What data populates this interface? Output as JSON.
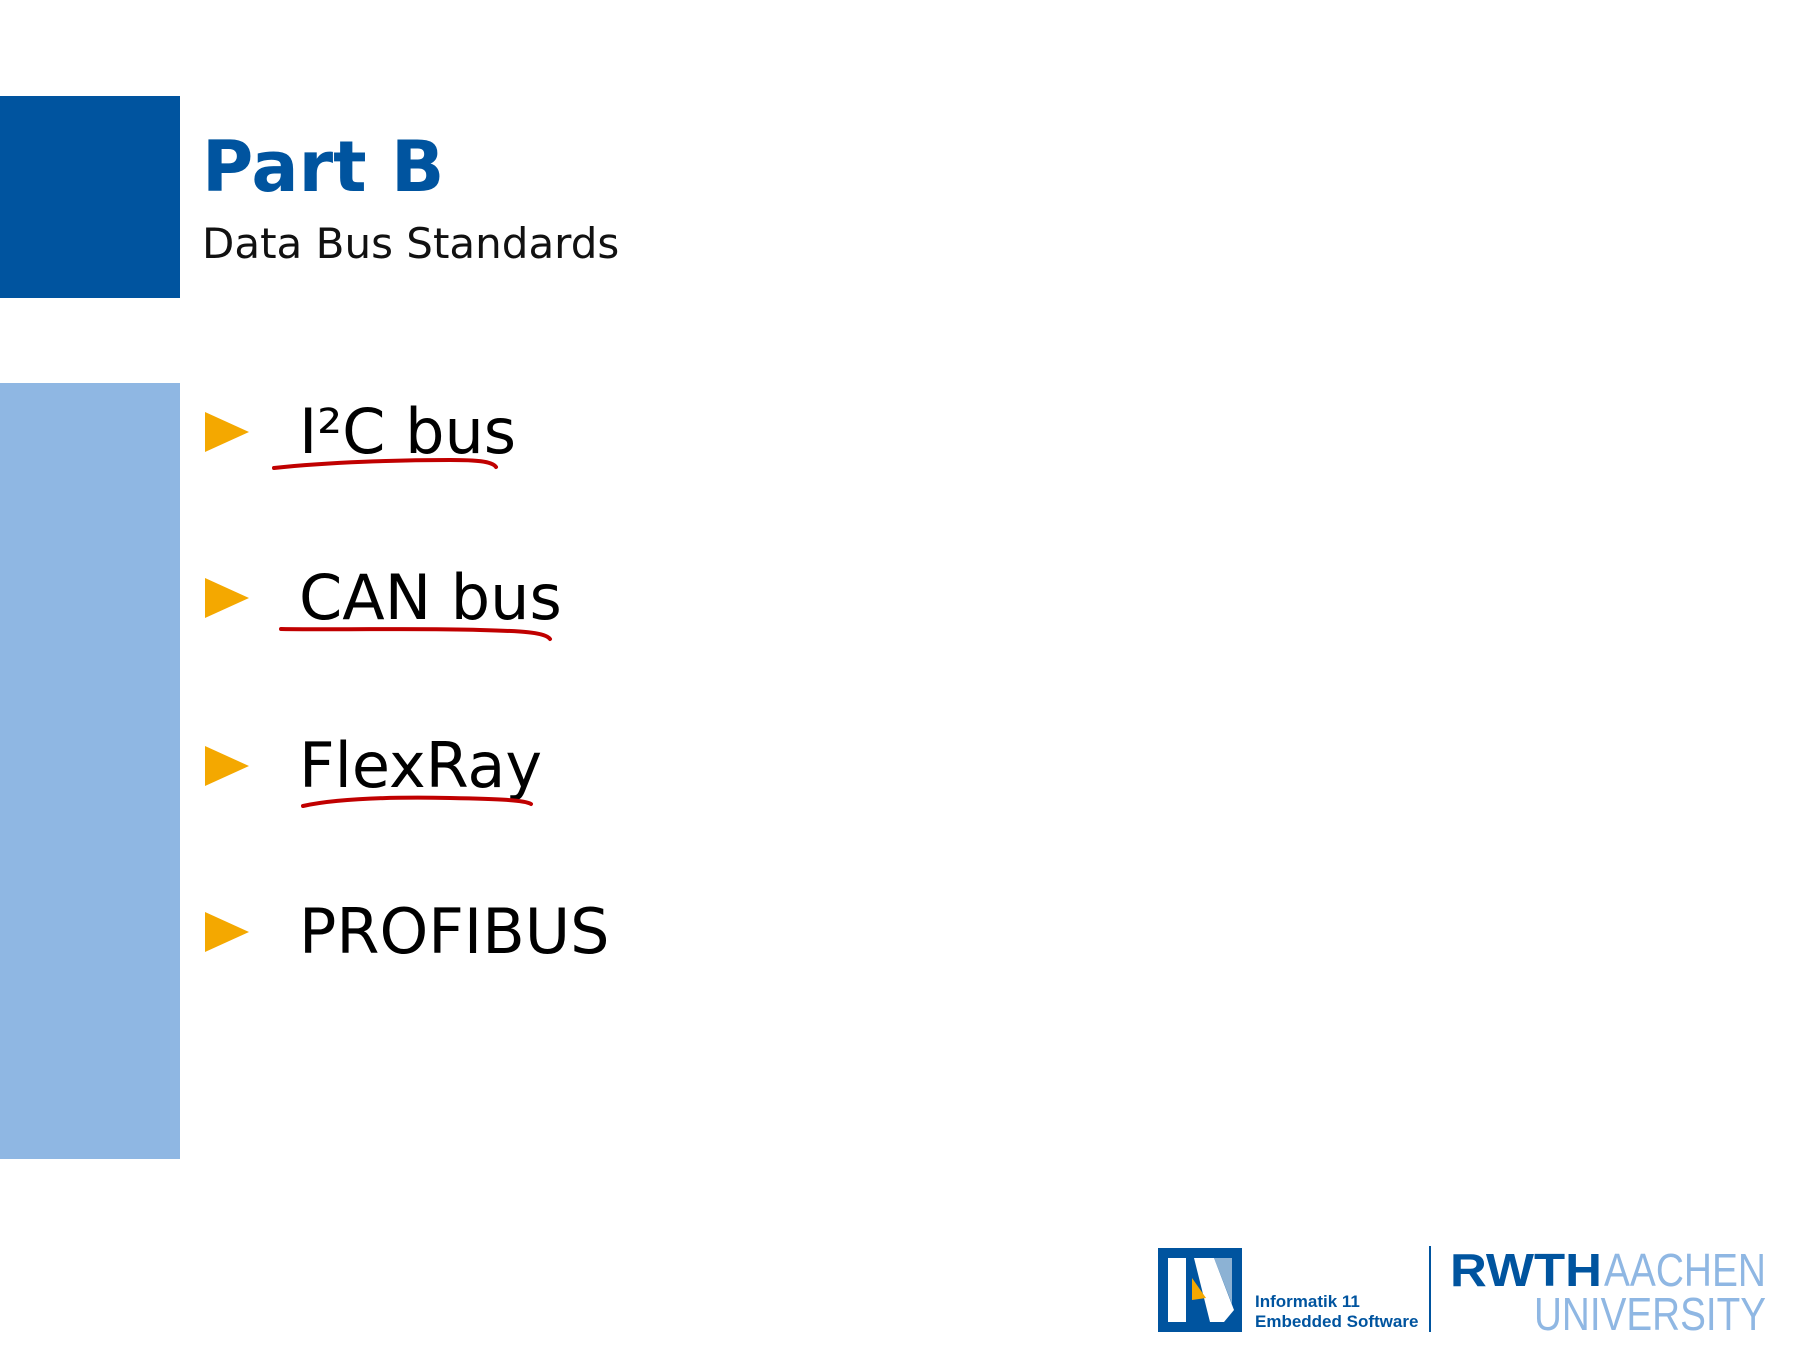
{
  "slide": {
    "title": "Part B",
    "subtitle": "Data Bus Standards"
  },
  "bullets": [
    {
      "label": "I²C bus",
      "underlined": true
    },
    {
      "label": "CAN bus",
      "underlined": true
    },
    {
      "label": "FlexRay",
      "underlined": true
    },
    {
      "label": "PROFIBUS",
      "underlined": false
    }
  ],
  "footer": {
    "institute_line1": "Informatik 11",
    "institute_line2": "Embedded Software",
    "university_line1_part1": "RWTH",
    "university_line1_part2": "AACHEN",
    "university_line2": "UNIVERSITY"
  },
  "colors": {
    "rwth_blue": "#00549f",
    "light_blue": "#8fb7e3",
    "bullet_orange": "#f4a800",
    "annotation_red": "#c00000"
  },
  "icons": {
    "bullet_marker": "triangle-right-icon",
    "institute_logo": "informatik-11-logo"
  }
}
